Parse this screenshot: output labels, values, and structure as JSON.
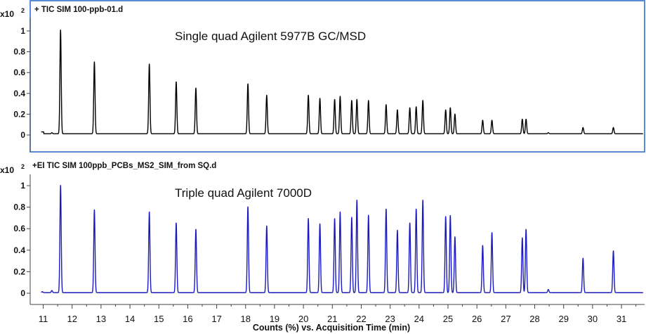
{
  "chart_data": [
    {
      "type": "line",
      "trace_title": "+ TIC SIM 100-ppb-01.d",
      "annotation": "Single quad Agilent 5977B GC/MSD",
      "y_scale_label": "x10",
      "y_scale_exponent": "2",
      "color": "#000000",
      "highlight_color": "#2f6fce",
      "ylim": [
        -0.1,
        1.05
      ],
      "yticks": [
        0,
        0.2,
        0.4,
        0.6,
        0.8,
        1
      ],
      "ytick_labels": [
        "0",
        "0.2",
        "0.4",
        "0.6",
        "0.8",
        "1"
      ],
      "baseline": 0.012,
      "initial_offset": {
        "end_x": 11.02,
        "level": 0.03
      },
      "peaks": [
        {
          "x": 11.3,
          "y": 0.01
        },
        {
          "x": 11.6,
          "y": 1.0
        },
        {
          "x": 12.77,
          "y": 0.69
        },
        {
          "x": 14.67,
          "y": 0.67
        },
        {
          "x": 15.6,
          "y": 0.5
        },
        {
          "x": 16.28,
          "y": 0.44
        },
        {
          "x": 18.08,
          "y": 0.48
        },
        {
          "x": 18.73,
          "y": 0.37
        },
        {
          "x": 20.17,
          "y": 0.37
        },
        {
          "x": 20.57,
          "y": 0.34
        },
        {
          "x": 21.08,
          "y": 0.33
        },
        {
          "x": 21.27,
          "y": 0.36
        },
        {
          "x": 21.67,
          "y": 0.32
        },
        {
          "x": 21.85,
          "y": 0.33
        },
        {
          "x": 22.25,
          "y": 0.32
        },
        {
          "x": 22.86,
          "y": 0.28
        },
        {
          "x": 23.25,
          "y": 0.23
        },
        {
          "x": 23.68,
          "y": 0.25
        },
        {
          "x": 23.9,
          "y": 0.26
        },
        {
          "x": 24.13,
          "y": 0.32
        },
        {
          "x": 24.92,
          "y": 0.23
        },
        {
          "x": 25.08,
          "y": 0.25
        },
        {
          "x": 25.24,
          "y": 0.19
        },
        {
          "x": 26.2,
          "y": 0.13
        },
        {
          "x": 26.52,
          "y": 0.13
        },
        {
          "x": 27.57,
          "y": 0.14
        },
        {
          "x": 27.7,
          "y": 0.14
        },
        {
          "x": 28.47,
          "y": 0.01
        },
        {
          "x": 29.67,
          "y": 0.06
        },
        {
          "x": 30.72,
          "y": 0.06
        }
      ]
    },
    {
      "type": "line",
      "trace_title": "+EI TIC SIM 100ppb_PCBs_MS2_SIM_from SQ.d",
      "annotation": "Triple quad Agilent 7000D",
      "y_scale_label": "x10",
      "y_scale_exponent": "2",
      "color": "#1a1abf",
      "ylim": [
        -0.1,
        1.05
      ],
      "yticks": [
        0,
        0.2,
        0.4,
        0.6,
        0.8,
        1
      ],
      "ytick_labels": [
        "0",
        "0.2",
        "0.4",
        "0.6",
        "0.8",
        "1"
      ],
      "baseline": 0.005,
      "peaks": [
        {
          "x": 10.97,
          "y": 0.01
        },
        {
          "x": 11.3,
          "y": 0.02
        },
        {
          "x": 11.6,
          "y": 1.0
        },
        {
          "x": 12.77,
          "y": 0.77
        },
        {
          "x": 14.67,
          "y": 0.75
        },
        {
          "x": 15.6,
          "y": 0.65
        },
        {
          "x": 16.28,
          "y": 0.59
        },
        {
          "x": 18.08,
          "y": 0.8
        },
        {
          "x": 18.73,
          "y": 0.62
        },
        {
          "x": 20.17,
          "y": 0.69
        },
        {
          "x": 20.57,
          "y": 0.64
        },
        {
          "x": 21.08,
          "y": 0.69
        },
        {
          "x": 21.27,
          "y": 0.75
        },
        {
          "x": 21.67,
          "y": 0.7
        },
        {
          "x": 21.85,
          "y": 0.86
        },
        {
          "x": 22.25,
          "y": 0.72
        },
        {
          "x": 22.86,
          "y": 0.78
        },
        {
          "x": 23.25,
          "y": 0.58
        },
        {
          "x": 23.68,
          "y": 0.65
        },
        {
          "x": 23.9,
          "y": 0.78
        },
        {
          "x": 24.13,
          "y": 0.86
        },
        {
          "x": 24.92,
          "y": 0.71
        },
        {
          "x": 25.08,
          "y": 0.72
        },
        {
          "x": 25.24,
          "y": 0.52
        },
        {
          "x": 26.2,
          "y": 0.44
        },
        {
          "x": 26.52,
          "y": 0.56
        },
        {
          "x": 27.57,
          "y": 0.51
        },
        {
          "x": 27.7,
          "y": 0.59
        },
        {
          "x": 28.47,
          "y": 0.03
        },
        {
          "x": 29.67,
          "y": 0.32
        },
        {
          "x": 30.72,
          "y": 0.39
        }
      ]
    }
  ],
  "x_axis": {
    "label": "Counts (%) vs. Acquisition Time (min)",
    "range": [
      10.55,
      31.8
    ],
    "ticks": [
      11,
      12,
      13,
      14,
      15,
      16,
      17,
      18,
      19,
      20,
      21,
      22,
      23,
      24,
      25,
      26,
      27,
      28,
      29,
      30,
      31
    ],
    "tick_labels": [
      "11",
      "12",
      "13",
      "14",
      "15",
      "16",
      "17",
      "18",
      "19",
      "20",
      "21",
      "22",
      "23",
      "24",
      "25",
      "26",
      "27",
      "28",
      "29",
      "30",
      "31"
    ]
  }
}
